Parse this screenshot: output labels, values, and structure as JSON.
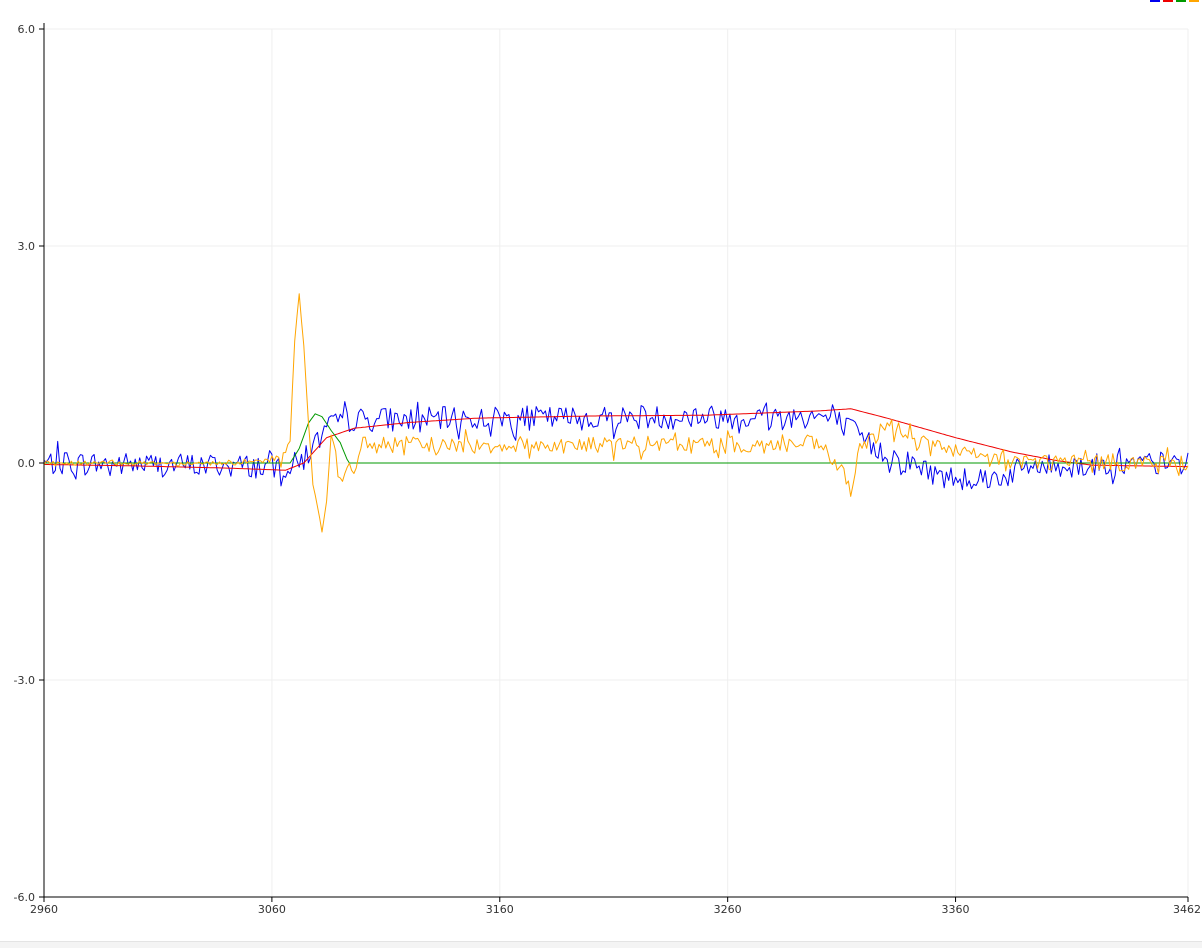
{
  "chart_data": {
    "type": "line",
    "title": "",
    "xlabel": "",
    "ylabel": "",
    "xlim": [
      2960,
      3462
    ],
    "ylim": [
      -6.0,
      6.0
    ],
    "grid": true,
    "legend_placement": "top-right",
    "x_ticks": [
      "2960",
      "3060",
      "3160",
      "3260",
      "3360",
      "3462"
    ],
    "y_ticks": [
      "-6.0",
      "-3.0",
      "0.0",
      "3.0",
      "6.0"
    ],
    "x_tick_values": [
      2960,
      3060,
      3160,
      3260,
      3360,
      3462
    ],
    "y_tick_values": [
      -6.0,
      -3.0,
      0.0,
      3.0,
      6.0
    ],
    "series": [
      {
        "color": "#0000ee",
        "kind": "noisy",
        "keypoints": [
          [
            2960,
            0.0
          ],
          [
            3068,
            -0.05
          ],
          [
            3074,
            0.05
          ],
          [
            3080,
            0.3
          ],
          [
            3085,
            0.5
          ],
          [
            3095,
            0.6
          ],
          [
            3300,
            0.65
          ],
          [
            3310,
            0.55
          ],
          [
            3325,
            0.2
          ],
          [
            3340,
            0.0
          ],
          [
            3355,
            -0.2
          ],
          [
            3380,
            -0.2
          ],
          [
            3392,
            -0.05
          ],
          [
            3462,
            0.0
          ]
        ],
        "noise_amp": 0.17
      },
      {
        "color": "#ee0000",
        "kind": "smooth",
        "keypoints": [
          [
            2960,
            -0.02
          ],
          [
            3000,
            -0.04
          ],
          [
            3040,
            -0.07
          ],
          [
            3066,
            -0.1
          ],
          [
            3074,
            0.0
          ],
          [
            3084,
            0.35
          ],
          [
            3096,
            0.48
          ],
          [
            3120,
            0.56
          ],
          [
            3150,
            0.62
          ],
          [
            3200,
            0.65
          ],
          [
            3250,
            0.66
          ],
          [
            3300,
            0.72
          ],
          [
            3314,
            0.75
          ],
          [
            3330,
            0.62
          ],
          [
            3360,
            0.35
          ],
          [
            3385,
            0.15
          ],
          [
            3405,
            0.03
          ],
          [
            3420,
            -0.03
          ],
          [
            3462,
            -0.05
          ]
        ],
        "noise_amp": 0.0
      },
      {
        "color": "#009900",
        "kind": "smooth",
        "keypoints": [
          [
            2960,
            0.0
          ],
          [
            3068,
            0.0
          ],
          [
            3072,
            0.2
          ],
          [
            3076,
            0.55
          ],
          [
            3079,
            0.68
          ],
          [
            3082,
            0.64
          ],
          [
            3086,
            0.45
          ],
          [
            3090,
            0.28
          ],
          [
            3093,
            0.05
          ],
          [
            3094,
            0.0
          ],
          [
            3462,
            0.0
          ]
        ],
        "noise_amp": 0.0
      },
      {
        "color": "#ffa500",
        "kind": "spiky",
        "points": [
          [
            2960,
            0.0
          ],
          [
            3050,
            0.0
          ],
          [
            3064,
            0.05
          ],
          [
            3068,
            0.3
          ],
          [
            3070,
            1.7
          ],
          [
            3072,
            2.35
          ],
          [
            3074,
            1.6
          ],
          [
            3076,
            0.6
          ],
          [
            3078,
            -0.3
          ],
          [
            3080,
            -0.6
          ],
          [
            3082,
            -0.95
          ],
          [
            3084,
            -0.5
          ],
          [
            3086,
            0.4
          ],
          [
            3088,
            0.1
          ],
          [
            3090,
            -0.3
          ],
          [
            3092,
            -0.25
          ],
          [
            3094,
            -0.05
          ],
          [
            3096,
            -0.2
          ],
          [
            3098,
            0.15
          ],
          [
            3100,
            0.25
          ],
          [
            3300,
            0.25
          ],
          [
            3310,
            -0.1
          ],
          [
            3314,
            -0.38
          ],
          [
            3318,
            0.15
          ],
          [
            3330,
            0.55
          ],
          [
            3345,
            0.3
          ],
          [
            3360,
            0.15
          ],
          [
            3375,
            0.05
          ],
          [
            3392,
            0.02
          ],
          [
            3462,
            0.0
          ]
        ],
        "noise_amp": 0.12
      }
    ]
  }
}
